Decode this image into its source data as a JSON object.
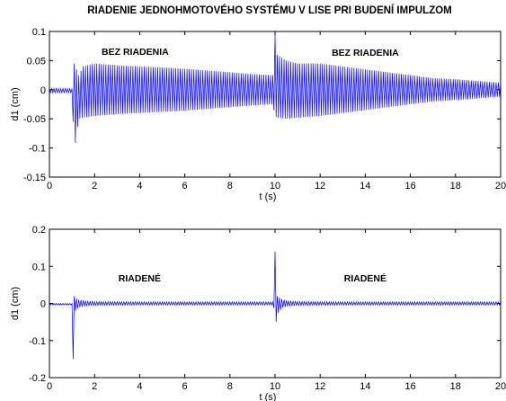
{
  "figure": {
    "title": "RIADENIE  JEDNOHMOTOVÉHO  SYSTÉMU  V  LISE   PRI  BUDENÍ  IMPULZOM"
  },
  "chart_data": [
    {
      "type": "line",
      "xlabel": "t (s)",
      "ylabel": "d1 (cm)",
      "xlim": [
        0,
        20
      ],
      "ylim": [
        -0.15,
        0.1
      ],
      "xticks": [
        "0",
        "2",
        "4",
        "6",
        "8",
        "10",
        "12",
        "14",
        "16",
        "18",
        "20"
      ],
      "yticks": [
        "0.1",
        "0.05",
        "0",
        "-0.05",
        "-0.1",
        "-0.15"
      ],
      "annotations": [
        {
          "text": "BEZ  RIADENIA",
          "x": 3.8,
          "y": 0.06
        },
        {
          "text": "BEZ  RIADENIA",
          "x": 14.0,
          "y": 0.058
        }
      ],
      "color": "#0000ff",
      "grid": false,
      "series": [
        {
          "name": "",
          "x": [
            0,
            0.5,
            1.0,
            1.1,
            1.3,
            1.5,
            2,
            3,
            4,
            5,
            6,
            7,
            8,
            9,
            9.9,
            10.0,
            10.1,
            10.5,
            11,
            12,
            13,
            14,
            15,
            16,
            17,
            18,
            19,
            20
          ],
          "envelope_upper": [
            0.002,
            0.002,
            0.002,
            0.045,
            0.025,
            0.04,
            0.045,
            0.042,
            0.04,
            0.038,
            0.036,
            0.033,
            0.03,
            0.027,
            0.025,
            0.096,
            0.06,
            0.05,
            0.045,
            0.045,
            0.04,
            0.035,
            0.03,
            0.025,
            0.02,
            0.018,
            0.015,
            0.012
          ],
          "envelope_lower": [
            -0.005,
            -0.005,
            -0.005,
            -0.105,
            -0.05,
            -0.048,
            -0.045,
            -0.042,
            -0.04,
            -0.038,
            -0.036,
            -0.033,
            -0.03,
            -0.027,
            -0.025,
            -0.045,
            -0.048,
            -0.05,
            -0.048,
            -0.045,
            -0.04,
            -0.035,
            -0.03,
            -0.025,
            -0.02,
            -0.018,
            -0.015,
            -0.012
          ],
          "oscillation_period_s": 0.1
        }
      ]
    },
    {
      "type": "line",
      "xlabel": "t (s)",
      "ylabel": "d1 (cm)",
      "xlim": [
        0,
        20
      ],
      "ylim": [
        -0.2,
        0.2
      ],
      "xticks": [
        "0",
        "2",
        "4",
        "6",
        "8",
        "10",
        "12",
        "14",
        "16",
        "18",
        "20"
      ],
      "yticks": [
        "0.2",
        "0.1",
        "0",
        "-0.1",
        "-0.2"
      ],
      "annotations": [
        {
          "text": "RIADENÉ",
          "x": 4.0,
          "y": 0.06
        },
        {
          "text": "RIADENÉ",
          "x": 14.0,
          "y": 0.06
        }
      ],
      "color": "#0000ff",
      "grid": false,
      "series": [
        {
          "name": "",
          "x": [
            0,
            0.5,
            1.0,
            1.05,
            1.1,
            1.15,
            1.3,
            1.5,
            2,
            4,
            6,
            8,
            9.9,
            10.0,
            10.05,
            10.1,
            10.3,
            10.5,
            11,
            13,
            15,
            17,
            20
          ],
          "envelope_upper": [
            0.0,
            0.0,
            0.0,
            0.04,
            0.02,
            0.015,
            0.01,
            0.008,
            0.005,
            0.004,
            0.004,
            0.004,
            0.004,
            0.14,
            0.05,
            0.02,
            0.012,
            0.008,
            0.005,
            0.004,
            0.004,
            0.004,
            0.004
          ],
          "envelope_lower": [
            -0.004,
            -0.004,
            -0.004,
            -0.15,
            -0.04,
            -0.02,
            -0.01,
            -0.008,
            -0.005,
            -0.004,
            -0.004,
            -0.004,
            -0.004,
            -0.02,
            -0.05,
            -0.03,
            -0.012,
            -0.008,
            -0.005,
            -0.004,
            -0.004,
            -0.004,
            -0.004
          ],
          "oscillation_period_s": 0.1
        }
      ]
    }
  ]
}
